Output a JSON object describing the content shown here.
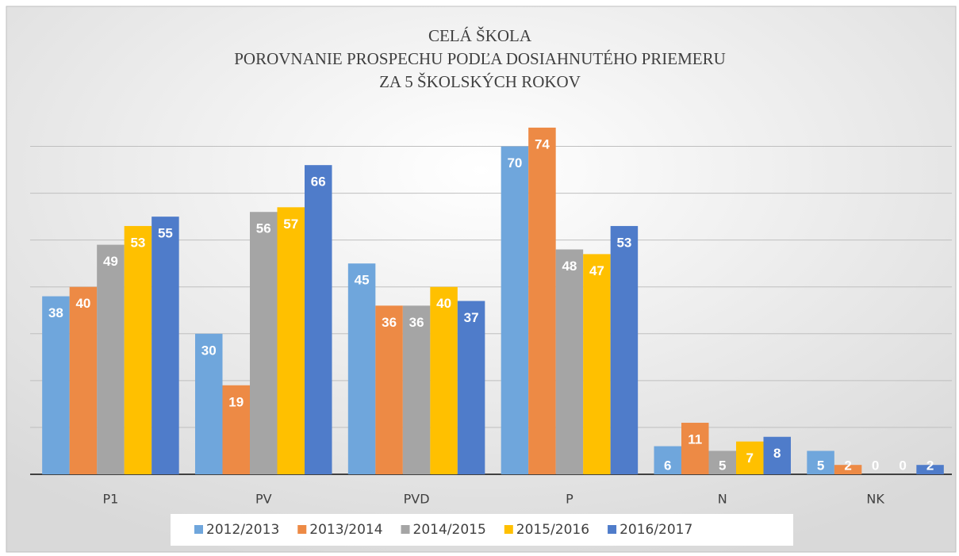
{
  "chart_data": {
    "type": "bar",
    "title": [
      "CELÁ ŠKOLA",
      "POROVNANIE PROSPECHU PODĽA DOSIAHNUTÉHO PRIEMERU",
      "ZA 5 ŠKOLSKÝCH   ROKOV"
    ],
    "categories": [
      "P1",
      "PV",
      "PVD",
      "P",
      "N",
      "NK"
    ],
    "series": [
      {
        "name": "2012/2013",
        "color": "#6fa6dc",
        "values": [
          38,
          30,
          45,
          70,
          6,
          5
        ]
      },
      {
        "name": "2013/2014",
        "color": "#ed8a45",
        "values": [
          40,
          19,
          36,
          74,
          11,
          2
        ]
      },
      {
        "name": "2014/2015",
        "color": "#a5a5a5",
        "values": [
          49,
          56,
          36,
          48,
          5,
          0
        ]
      },
      {
        "name": "2015/2016",
        "color": "#ffc000",
        "values": [
          53,
          57,
          40,
          47,
          7,
          0
        ]
      },
      {
        "name": "2016/2017",
        "color": "#4f7cca",
        "values": [
          55,
          66,
          37,
          53,
          8,
          2
        ]
      }
    ],
    "ylim": [
      0,
      75
    ],
    "yticks": [
      0,
      10,
      20,
      30,
      40,
      50,
      60,
      70
    ],
    "grid": true,
    "legend": "bottom"
  }
}
